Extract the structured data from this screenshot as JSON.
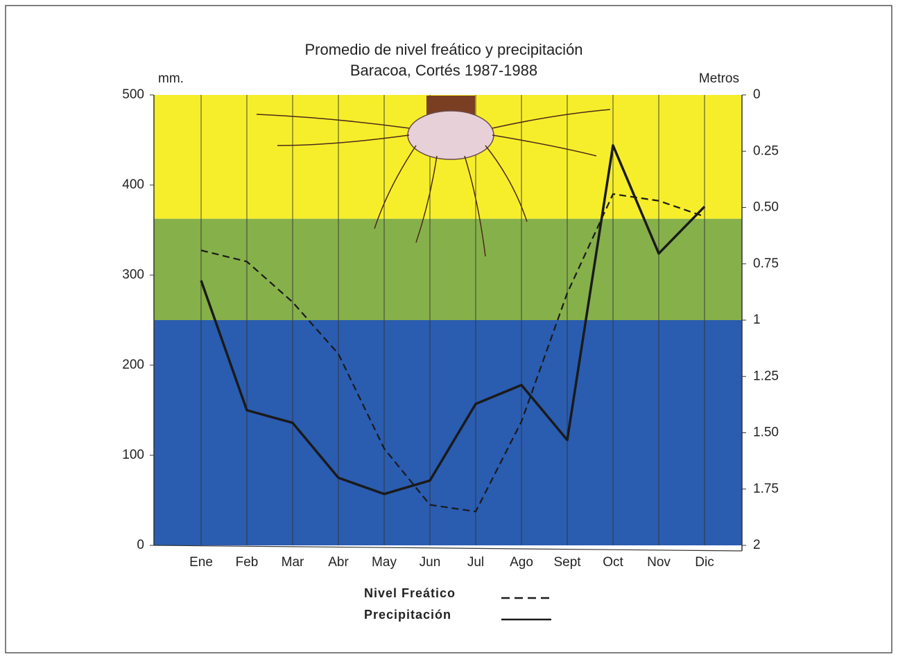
{
  "chart_data": {
    "type": "line",
    "title": "Promedio de nivel freático y precipitación",
    "subtitle": "Baracoa, Cortés 1987-1988",
    "y_label": "mm.",
    "y2_label": "Metros",
    "categories": [
      "Ene",
      "Feb",
      "Mar",
      "Abr",
      "May",
      "Jun",
      "Jul",
      "Ago",
      "Sept",
      "Oct",
      "Nov",
      "Dic"
    ],
    "series": [
      {
        "name": "Nivel Freático",
        "color": "#1a1a1a",
        "dash": true,
        "axis": "y2",
        "values": [
          0.69,
          0.74,
          0.92,
          1.15,
          1.57,
          1.82,
          1.85,
          1.45,
          0.88,
          0.44,
          0.47,
          0.54
        ]
      },
      {
        "name": "Precipitación",
        "color": "#1a1a1a",
        "dash": false,
        "values": [
          294,
          150,
          136,
          75,
          57,
          72,
          157,
          178,
          117,
          444,
          324,
          376
        ]
      }
    ],
    "ylim": [
      0,
      500
    ],
    "yticks": [
      0,
      100,
      200,
      300,
      400,
      500
    ],
    "y2lim": [
      2,
      0
    ],
    "y2ticks": [
      0,
      0.25,
      {
        "value": 0.5,
        "label": "0.50"
      },
      0.75,
      1,
      1.25,
      {
        "value": 1.5,
        "label": "1.50"
      },
      1.75,
      2
    ],
    "zones": [
      {
        "axis": "y2",
        "from": 0,
        "to": 0.55,
        "color": "#f6ee2a"
      },
      {
        "axis": "y2",
        "from": 0.55,
        "to": 1,
        "color": "#86b04a"
      },
      {
        "axis": "y2",
        "from": 1,
        "to": 2,
        "color": "#2a5cb0"
      }
    ],
    "grid": true
  }
}
